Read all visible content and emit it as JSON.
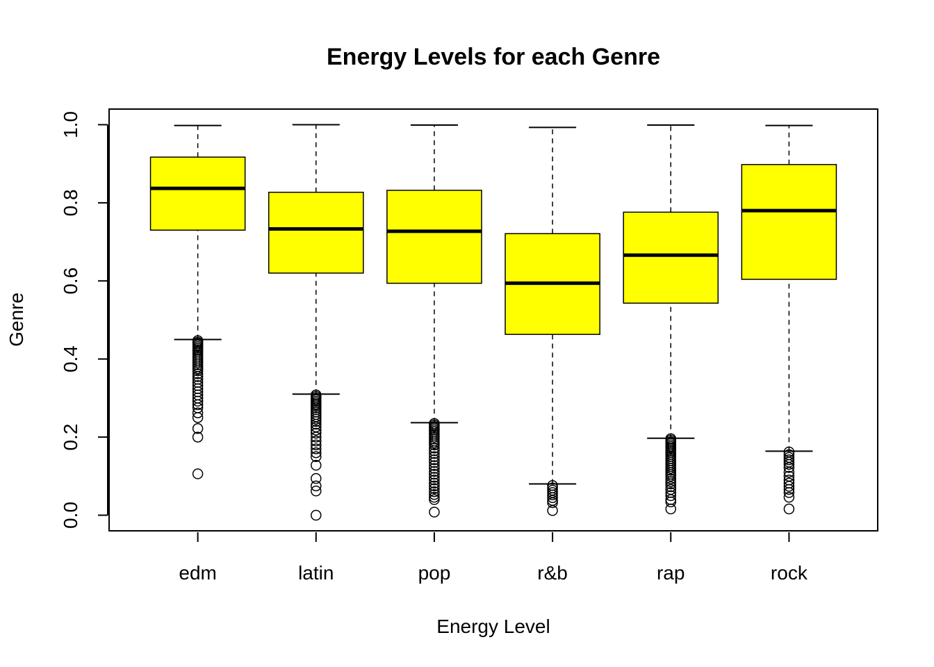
{
  "chart_data": {
    "type": "boxplot",
    "title": "Energy Levels for each Genre",
    "xlabel": "Energy Level",
    "ylabel": "Genre",
    "ylim": [
      -0.04,
      1.04
    ],
    "y_ticks": [
      0.0,
      0.2,
      0.4,
      0.6,
      0.8,
      1.0
    ],
    "y_tick_labels": [
      "0.0",
      "0.2",
      "0.4",
      "0.6",
      "0.8",
      "1.0"
    ],
    "categories": [
      "edm",
      "latin",
      "pop",
      "r&b",
      "rap",
      "rock"
    ],
    "box_fill": "#ffff00",
    "grid": false,
    "boxes": [
      {
        "name": "edm",
        "whisker_low": 0.45,
        "q1": 0.73,
        "median": 0.837,
        "q3": 0.917,
        "whisker_high": 0.998,
        "outliers": [
          0.447,
          0.443,
          0.44,
          0.436,
          0.432,
          0.428,
          0.424,
          0.42,
          0.415,
          0.41,
          0.405,
          0.4,
          0.395,
          0.39,
          0.385,
          0.38,
          0.375,
          0.37,
          0.362,
          0.355,
          0.348,
          0.34,
          0.332,
          0.324,
          0.316,
          0.308,
          0.3,
          0.292,
          0.283,
          0.275,
          0.262,
          0.25,
          0.222,
          0.2,
          0.106
        ]
      },
      {
        "name": "latin",
        "whisker_low": 0.31,
        "q1": 0.62,
        "median": 0.733,
        "q3": 0.827,
        "whisker_high": 1.0,
        "outliers": [
          0.308,
          0.304,
          0.3,
          0.296,
          0.292,
          0.288,
          0.284,
          0.28,
          0.275,
          0.27,
          0.264,
          0.258,
          0.252,
          0.246,
          0.24,
          0.233,
          0.226,
          0.218,
          0.21,
          0.2,
          0.19,
          0.18,
          0.17,
          0.16,
          0.15,
          0.128,
          0.094,
          0.075,
          0.062,
          0.0
        ]
      },
      {
        "name": "pop",
        "whisker_low": 0.237,
        "q1": 0.594,
        "median": 0.727,
        "q3": 0.832,
        "whisker_high": 0.999,
        "outliers": [
          0.235,
          0.231,
          0.227,
          0.223,
          0.219,
          0.215,
          0.21,
          0.205,
          0.2,
          0.195,
          0.19,
          0.185,
          0.18,
          0.172,
          0.165,
          0.158,
          0.15,
          0.142,
          0.135,
          0.127,
          0.12,
          0.112,
          0.105,
          0.097,
          0.09,
          0.082,
          0.075,
          0.068,
          0.06,
          0.053,
          0.046,
          0.04,
          0.008
        ]
      },
      {
        "name": "r&b",
        "whisker_low": 0.08,
        "q1": 0.463,
        "median": 0.594,
        "q3": 0.721,
        "whisker_high": 0.993,
        "outliers": [
          0.076,
          0.07,
          0.064,
          0.058,
          0.052,
          0.045,
          0.038,
          0.032,
          0.012
        ]
      },
      {
        "name": "rap",
        "whisker_low": 0.197,
        "q1": 0.543,
        "median": 0.666,
        "q3": 0.776,
        "whisker_high": 0.999,
        "outliers": [
          0.196,
          0.192,
          0.188,
          0.184,
          0.18,
          0.176,
          0.172,
          0.168,
          0.164,
          0.16,
          0.155,
          0.15,
          0.145,
          0.14,
          0.135,
          0.13,
          0.125,
          0.12,
          0.115,
          0.11,
          0.105,
          0.1,
          0.093,
          0.086,
          0.08,
          0.073,
          0.066,
          0.058,
          0.05,
          0.04,
          0.034,
          0.016
        ]
      },
      {
        "name": "rock",
        "whisker_low": 0.164,
        "q1": 0.604,
        "median": 0.78,
        "q3": 0.898,
        "whisker_high": 0.998,
        "outliers": [
          0.162,
          0.155,
          0.148,
          0.142,
          0.136,
          0.13,
          0.122,
          0.11,
          0.1,
          0.09,
          0.082,
          0.074,
          0.066,
          0.058,
          0.046,
          0.016
        ]
      }
    ]
  }
}
